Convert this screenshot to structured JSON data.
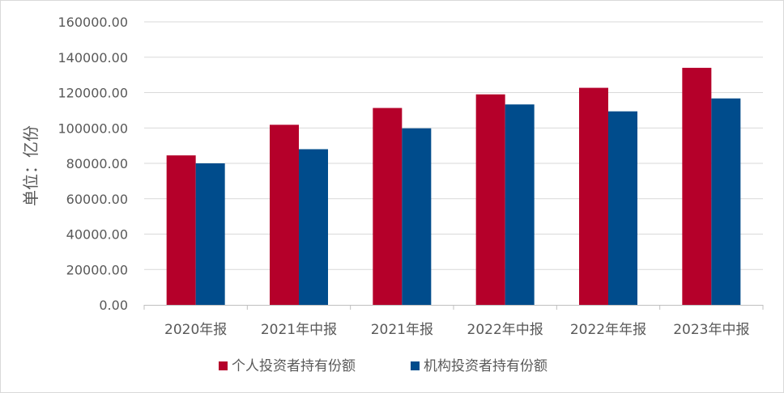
{
  "chart_data": {
    "type": "bar",
    "ylabel": "单位：亿份",
    "categories": [
      "2020年报",
      "2021年中报",
      "2021年报",
      "2022年中报",
      "2022年年报",
      "2023年中报"
    ],
    "series": [
      {
        "name": "个人投资者持有份额",
        "color": "#B5002A",
        "values": [
          84500,
          101800,
          111300,
          119000,
          122700,
          134000
        ]
      },
      {
        "name": "机构投资者持有份额",
        "color": "#004C8C",
        "values": [
          80000,
          88000,
          99800,
          113300,
          109400,
          116700
        ]
      }
    ],
    "ylim": [
      0,
      160000
    ],
    "yticks": [
      "0.00",
      "20000.00",
      "40000.00",
      "60000.00",
      "80000.00",
      "100000.00",
      "120000.00",
      "140000.00",
      "160000.00"
    ],
    "grid": true,
    "legend_position": "bottom"
  }
}
